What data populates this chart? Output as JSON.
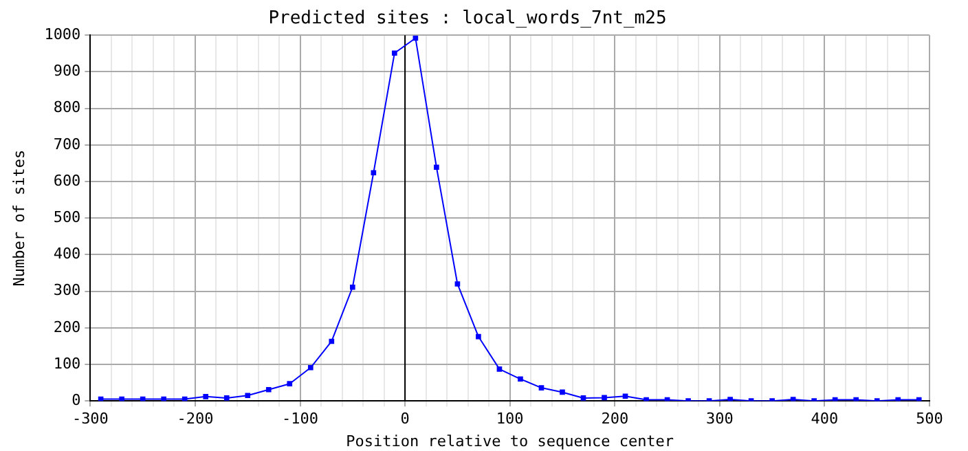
{
  "chart_data": {
    "type": "line",
    "title": "Predicted sites : local_words_7nt_m25",
    "xlabel": "Position relative to sequence center",
    "ylabel": "Number of sites",
    "x": [
      -290,
      -270,
      -250,
      -230,
      -210,
      -190,
      -170,
      -150,
      -130,
      -110,
      -90,
      -70,
      -50,
      -30,
      -10,
      10,
      30,
      50,
      70,
      90,
      110,
      130,
      150,
      170,
      190,
      210,
      230,
      250,
      270,
      290,
      310,
      330,
      350,
      370,
      390,
      410,
      430,
      450,
      470,
      490
    ],
    "series": [
      {
        "color": "#0000ff",
        "values": [
          5,
          5,
          5,
          5,
          5,
          12,
          8,
          15,
          31,
          47,
          91,
          163,
          311,
          624,
          951,
          992,
          639,
          320,
          176,
          87,
          60,
          36,
          24,
          8,
          9,
          13,
          3,
          3,
          0,
          0,
          4,
          0,
          0,
          4,
          0,
          3,
          3,
          0,
          3,
          3
        ]
      }
    ],
    "xlim": [
      -300,
      500
    ],
    "ylim": [
      0,
      1000
    ],
    "xticks": [
      -300,
      {
        "value": -280,
        "label": null
      },
      {
        "value": -260,
        "label": null
      },
      {
        "value": -240,
        "label": null
      },
      {
        "value": -220,
        "label": null
      },
      -200,
      {
        "value": -180,
        "label": null
      },
      {
        "value": -160,
        "label": null
      },
      {
        "value": -140,
        "label": null
      },
      {
        "value": -120,
        "label": null
      },
      -100,
      {
        "value": -80,
        "label": null
      },
      {
        "value": -60,
        "label": null
      },
      {
        "value": -40,
        "label": null
      },
      {
        "value": -20,
        "label": null
      },
      0,
      {
        "value": 20,
        "label": null
      },
      {
        "value": 40,
        "label": null
      },
      {
        "value": 60,
        "label": null
      },
      {
        "value": 80,
        "label": null
      },
      100,
      {
        "value": 120,
        "label": null
      },
      {
        "value": 140,
        "label": null
      },
      {
        "value": 160,
        "label": null
      },
      {
        "value": 180,
        "label": null
      },
      200,
      {
        "value": 220,
        "label": null
      },
      {
        "value": 240,
        "label": null
      },
      {
        "value": 260,
        "label": null
      },
      {
        "value": 280,
        "label": null
      },
      300,
      {
        "value": 320,
        "label": null
      },
      {
        "value": 340,
        "label": null
      },
      {
        "value": 360,
        "label": null
      },
      {
        "value": 380,
        "label": null
      },
      400,
      {
        "value": 420,
        "label": null
      },
      {
        "value": 440,
        "label": null
      },
      {
        "value": 460,
        "label": null
      },
      {
        "value": 480,
        "label": null
      },
      500
    ],
    "yticks": [
      0,
      100,
      200,
      300,
      400,
      500,
      600,
      700,
      800,
      900,
      1000
    ],
    "ref_lines": [
      {
        "axis": "x",
        "value": 0,
        "color": "#000000"
      }
    ],
    "grid": true,
    "marker": "square",
    "line_style": "solid",
    "legend": false
  }
}
